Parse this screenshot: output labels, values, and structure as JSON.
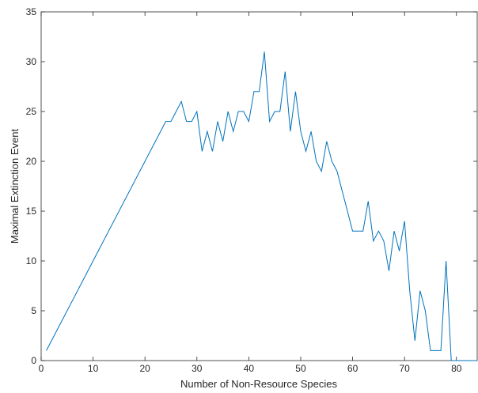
{
  "chart_data": {
    "type": "line",
    "title": "",
    "xlabel": "Number of Non-Resource Species",
    "ylabel": "Maximal Extinction Event",
    "xlim": [
      0,
      84
    ],
    "ylim": [
      0,
      35
    ],
    "xticks": [
      0,
      10,
      20,
      30,
      40,
      50,
      60,
      70,
      80
    ],
    "yticks": [
      0,
      5,
      10,
      15,
      20,
      25,
      30,
      35
    ],
    "grid": false,
    "line_color": "#0072BD",
    "series": [
      {
        "x": [
          1,
          24,
          25,
          27,
          28,
          29,
          30,
          31,
          32,
          33,
          34,
          35,
          36,
          37,
          38,
          39,
          40,
          41,
          42,
          43,
          44,
          45,
          46,
          47,
          48,
          49,
          50,
          51,
          52,
          53,
          54,
          55,
          56,
          57,
          60,
          62,
          63,
          64,
          65,
          66,
          67,
          68,
          69,
          70,
          71,
          72,
          73,
          74,
          75,
          76,
          77,
          78,
          79,
          84
        ],
        "y": [
          1,
          24,
          24,
          26,
          24,
          24,
          25,
          21,
          23,
          21,
          24,
          22,
          25,
          23,
          25,
          25,
          24,
          27,
          27,
          31,
          24,
          25,
          25,
          29,
          23,
          27,
          23,
          21,
          23,
          20,
          19,
          22,
          20,
          19,
          13,
          13,
          16,
          12,
          13,
          12,
          9,
          13,
          11,
          14,
          7,
          2,
          7,
          5,
          1,
          1,
          1,
          10,
          0,
          0
        ]
      }
    ]
  }
}
